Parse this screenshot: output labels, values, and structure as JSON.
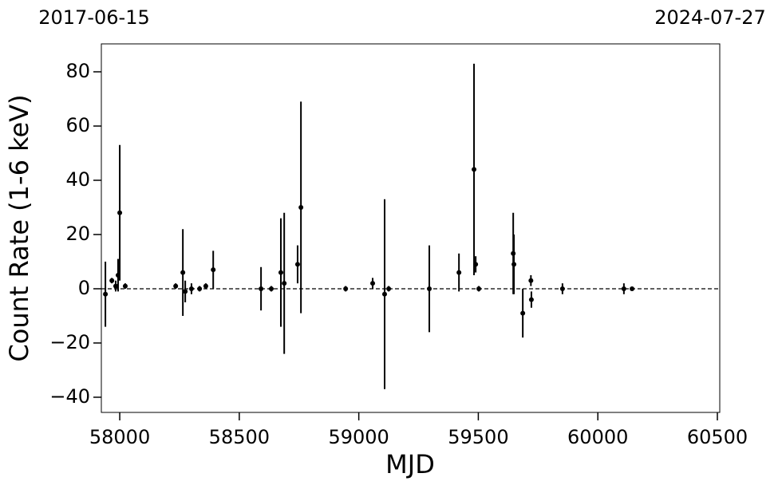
{
  "chart_data": {
    "type": "errorbar",
    "date_labels": [
      "2017-06-15",
      "2024-07-27"
    ],
    "xlabel": "MJD",
    "ylabel": "Count Rate (1-6 keV)",
    "x": [
      57940,
      57967,
      57983,
      57993,
      58000,
      58023,
      58234,
      58264,
      58274,
      58300,
      58334,
      58360,
      58391,
      58591,
      58634,
      58674,
      58688,
      58744,
      58758,
      58945,
      59058,
      59108,
      59125,
      59295,
      59419,
      59482,
      59489,
      59502,
      59646,
      59649,
      59686,
      59720,
      59722,
      59852,
      60109,
      60143
    ],
    "values": [
      -2,
      3,
      1,
      5,
      28,
      1,
      1,
      6,
      -1,
      0,
      0,
      1,
      7,
      0,
      0,
      6,
      2,
      9,
      30,
      0,
      2,
      -2,
      0,
      0,
      6,
      44,
      9,
      0,
      13,
      9,
      -9,
      3,
      -4,
      0,
      0,
      0
    ],
    "errors": [
      12,
      1,
      2,
      6,
      25,
      1,
      1,
      16,
      4,
      2,
      1,
      1,
      7,
      8,
      1,
      20,
      26,
      7,
      39,
      1,
      2,
      35,
      1,
      16,
      7,
      39,
      3,
      1,
      15,
      11,
      9,
      2,
      3,
      2,
      2,
      0.5
    ],
    "color": "#000000",
    "hline": 0,
    "xlim": [
      57923,
      60510
    ],
    "ylim": [
      -45.6,
      90.3
    ],
    "xticks": [
      58000,
      58500,
      59000,
      59500,
      60000,
      60500
    ],
    "yticks": [
      {
        "value": -40,
        "label": "−40"
      },
      {
        "value": -20,
        "label": "−20"
      },
      0,
      20,
      40,
      60,
      80
    ]
  }
}
